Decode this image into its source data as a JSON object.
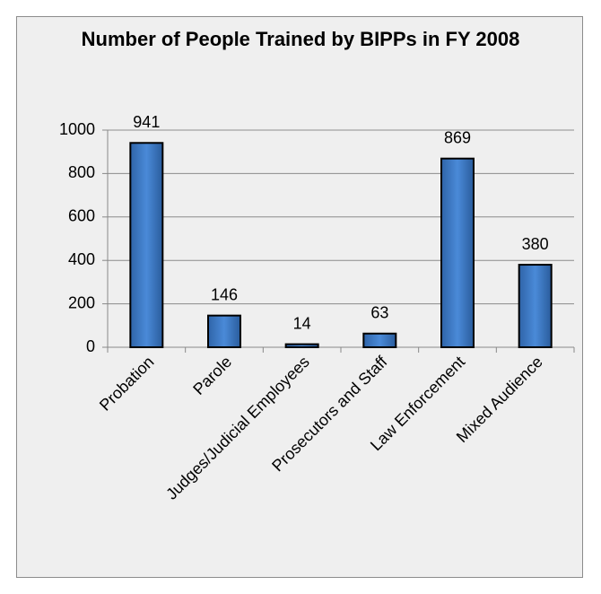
{
  "chart_data": {
    "type": "bar",
    "title": "Number of People Trained by BIPPs in FY 2008",
    "categories": [
      "Probation",
      "Parole",
      "Judges/Judicial Employees",
      "Prosecutors and Staff",
      "Law Enforcement",
      "Mixed Audience"
    ],
    "values": [
      941,
      146,
      14,
      63,
      869,
      380
    ],
    "color": "#3a77c0",
    "ylim": [
      0,
      1000
    ],
    "yticks": [
      0,
      200,
      400,
      600,
      800,
      1000
    ],
    "grid": true
  }
}
